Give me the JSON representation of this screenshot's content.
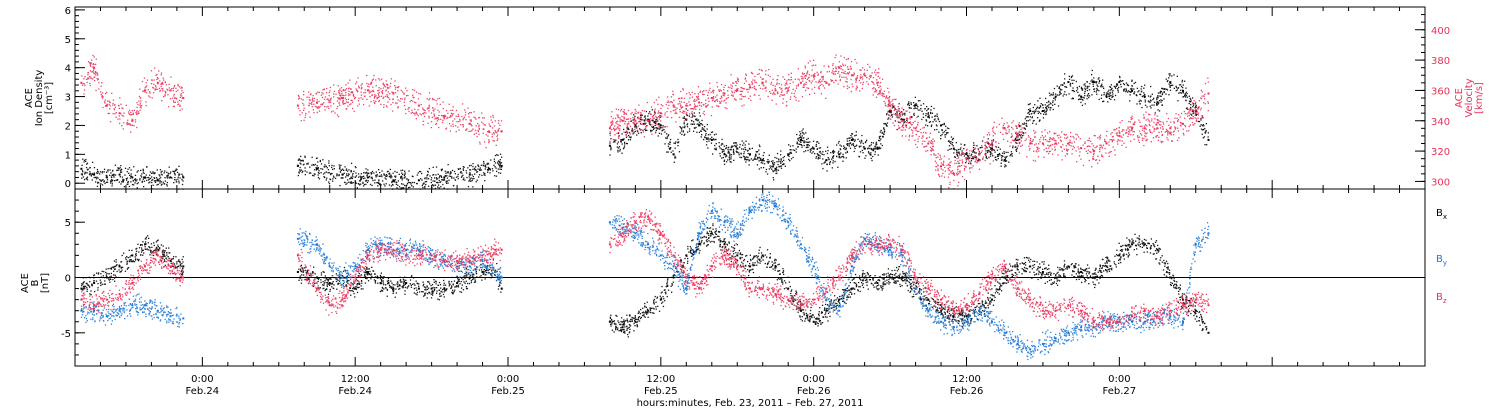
{
  "colors": {
    "black": "#000000",
    "pink": "#e8325a",
    "blue": "#1a78d6"
  },
  "chart_data": [
    {
      "type": "scatter",
      "panel": "top",
      "left_axis": {
        "label_lines": [
          "ACE",
          "Ion Density",
          "[cm⁻³]"
        ],
        "ylim": [
          -0.2,
          6.1
        ],
        "ticks": [
          0,
          1,
          2,
          3,
          4,
          5,
          6
        ]
      },
      "right_axis": {
        "label_lines": [
          "ACE",
          "Velocity",
          "[km/s]"
        ],
        "ylim": [
          295,
          415
        ],
        "ticks": [
          300,
          320,
          340,
          360,
          380,
          400
        ]
      },
      "series": [
        {
          "axis": "left",
          "color": "#000000",
          "segments": [
            {
              "x": [
                -9.5,
                -8.5,
                -7.5,
                -6.5,
                -5.5,
                -4.5,
                -3.5,
                -2.5,
                -1.5
              ],
              "y": [
                0.5,
                0.3,
                0.2,
                0.3,
                0.2,
                0.2,
                0.1,
                0.2,
                0.2
              ]
            },
            {
              "x": [
                7.5,
                9,
                11,
                13,
                15,
                17,
                19,
                21,
                22.5,
                23.5
              ],
              "y": [
                0.6,
                0.5,
                0.3,
                0.2,
                0.1,
                0.1,
                0.2,
                0.3,
                0.5,
                0.6
              ]
            },
            {
              "x": [
                32,
                33,
                34,
                35,
                36,
                37,
                38,
                39,
                40,
                41,
                42,
                43,
                44,
                45,
                46,
                47,
                48,
                49,
                50,
                51,
                52,
                53,
                54,
                55,
                56,
                57,
                58,
                59,
                60,
                61,
                62,
                63,
                64,
                65,
                66,
                67,
                68,
                69,
                70,
                71,
                72,
                73,
                74,
                75,
                76,
                77,
                78,
                79
              ],
              "y": [
                1.3,
                1.5,
                2.0,
                2.2,
                2.0,
                1.0,
                2.2,
                2.0,
                1.5,
                1.0,
                1.2,
                1.0,
                0.8,
                0.5,
                1.0,
                1.5,
                1.2,
                0.8,
                1.0,
                1.5,
                1.2,
                1.2,
                2.5,
                2.2,
                2.7,
                2.3,
                2.0,
                1.2,
                1.0,
                1.0,
                1.2,
                0.8,
                1.5,
                2.5,
                2.5,
                3.0,
                3.5,
                3.0,
                3.5,
                3.0,
                3.5,
                3.2,
                3.0,
                2.8,
                3.5,
                3.2,
                2.5,
                1.5
              ]
            }
          ]
        },
        {
          "axis": "right",
          "color": "#e8325a",
          "segments": [
            {
              "x": [
                -9.5,
                -8.5,
                -7.5,
                -6.5,
                -5.5,
                -4.5,
                -3.5,
                -2.5,
                -1.5
              ],
              "y": [
                365,
                375,
                350,
                345,
                340,
                360,
                365,
                360,
                355
              ]
            },
            {
              "x": [
                7.5,
                9,
                11,
                13,
                15,
                17,
                19,
                21,
                22.5,
                23.5
              ],
              "y": [
                350,
                352,
                355,
                360,
                358,
                350,
                343,
                338,
                333,
                333
              ]
            },
            {
              "x": [
                32,
                33,
                34,
                35,
                36,
                37,
                38,
                39,
                40,
                41,
                42,
                43,
                44,
                45,
                46,
                47,
                48,
                49,
                50,
                51,
                52,
                53,
                54,
                55,
                56,
                57,
                58,
                59,
                60,
                61,
                62,
                63,
                64,
                65,
                66,
                67,
                68,
                69,
                70,
                71,
                72,
                73,
                74,
                75,
                76,
                77,
                78,
                79
              ],
              "y": [
                335,
                340,
                340,
                340,
                345,
                350,
                350,
                352,
                355,
                358,
                360,
                362,
                365,
                360,
                360,
                365,
                370,
                365,
                375,
                370,
                370,
                365,
                350,
                340,
                335,
                325,
                310,
                305,
                315,
                318,
                325,
                335,
                330,
                325,
                325,
                325,
                325,
                322,
                320,
                325,
                330,
                335,
                335,
                335,
                335,
                338,
                345,
                358
              ]
            }
          ]
        }
      ]
    },
    {
      "type": "scatter",
      "panel": "bottom",
      "left_axis": {
        "label_lines": [
          "ACE",
          "B",
          "[nT]"
        ],
        "ylim": [
          -8,
          8
        ],
        "ticks": [
          -5,
          0,
          5
        ]
      },
      "zero_line": 0,
      "legend": [
        "B",
        "B",
        "B"
      ],
      "legend_subscripts": [
        "x",
        "y",
        "z"
      ],
      "series": [
        {
          "name": "Bx",
          "color": "#000000",
          "segments": [
            {
              "x": [
                -9.5,
                -8.5,
                -7.5,
                -6.5,
                -5.5,
                -4.5,
                -3.5,
                -2.5,
                -1.5
              ],
              "y": [
                -1,
                -0.5,
                0,
                1,
                2,
                3,
                2.5,
                1.5,
                1
              ]
            },
            {
              "x": [
                7.5,
                9,
                10,
                11,
                12,
                13,
                14,
                15,
                16,
                17,
                18,
                19,
                20,
                21,
                22,
                23,
                23.5
              ],
              "y": [
                0.5,
                0,
                -0.5,
                0,
                -1,
                0.5,
                -0.5,
                -1,
                -0.5,
                -1,
                -1,
                -1,
                -0.5,
                0,
                0.5,
                0.5,
                -1
              ]
            },
            {
              "x": [
                32,
                33,
                34,
                35,
                36,
                37,
                38,
                39,
                40,
                41,
                42,
                43,
                44,
                45,
                46,
                47,
                48,
                49,
                50,
                51,
                52,
                53,
                54,
                55,
                56,
                57,
                58,
                59,
                60,
                61,
                62,
                63,
                64,
                65,
                66,
                67,
                68,
                69,
                70,
                71,
                72,
                73,
                74,
                75,
                76,
                77,
                78,
                79
              ],
              "y": [
                -4,
                -4.5,
                -4,
                -3,
                -2,
                0,
                2,
                3,
                4,
                3,
                2,
                1,
                2,
                1,
                -1,
                -3,
                -4,
                -3,
                -2,
                -1,
                0,
                -0.5,
                0,
                0,
                -1,
                -2,
                -3,
                -3.5,
                -3.5,
                -3,
                -2,
                0,
                1,
                1,
                0.5,
                0,
                1,
                0.5,
                0,
                1,
                2,
                3,
                3,
                2.5,
                0,
                -2,
                -3,
                -5
              ]
            }
          ]
        },
        {
          "name": "By",
          "color": "#1a78d6",
          "segments": [
            {
              "x": [
                -9.5,
                -8.5,
                -7.5,
                -6.5,
                -5.5,
                -4.5,
                -3.5,
                -2.5,
                -1.5
              ],
              "y": [
                -3,
                -3,
                -3.5,
                -3,
                -2.5,
                -2.5,
                -3,
                -3.5,
                -3.7
              ]
            },
            {
              "x": [
                7.5,
                9,
                10,
                11,
                12,
                13,
                14,
                15,
                16,
                17,
                18,
                19,
                20,
                21,
                22,
                23,
                23.5
              ],
              "y": [
                3.5,
                3,
                1,
                0,
                1,
                2.5,
                3,
                2.5,
                2.5,
                2.5,
                2,
                1.5,
                1,
                1,
                1.5,
                0.5,
                0
              ]
            },
            {
              "x": [
                32,
                33,
                34,
                35,
                36,
                37,
                38,
                39,
                40,
                41,
                42,
                43,
                44,
                45,
                46,
                47,
                48,
                49,
                50,
                51,
                52,
                53,
                54,
                55,
                56,
                57,
                58,
                59,
                60,
                61,
                62,
                63,
                64,
                65,
                66,
                67,
                68,
                69,
                70,
                71,
                72,
                73,
                74,
                75,
                76,
                77,
                78,
                79
              ],
              "y": [
                5,
                4.5,
                4,
                3,
                2,
                1,
                -1,
                4,
                6,
                5,
                4,
                6,
                7,
                6.5,
                5,
                3,
                1,
                -2,
                -3,
                1,
                3.5,
                3,
                2.5,
                2,
                -1,
                -3,
                -4,
                -4.5,
                -4,
                -3,
                -4,
                -5,
                -6,
                -6.5,
                -6,
                -5.5,
                -5,
                -4.5,
                -4.5,
                -4,
                -4,
                -4,
                -4,
                -3.5,
                -3.5,
                -4,
                3,
                4
              ]
            }
          ]
        },
        {
          "name": "Bz",
          "color": "#e8325a",
          "segments": [
            {
              "x": [
                -9.5,
                -8.5,
                -7.5,
                -6.5,
                -5.5,
                -4.5,
                -3.5,
                -2.5,
                -1.5
              ],
              "y": [
                -2,
                -2.5,
                -2,
                -1.5,
                -0.5,
                1,
                2,
                1,
                0
              ]
            },
            {
              "x": [
                7.5,
                9,
                10,
                11,
                12,
                13,
                14,
                15,
                16,
                17,
                18,
                19,
                20,
                21,
                22,
                23,
                23.5
              ],
              "y": [
                2,
                -1,
                -2.5,
                -2,
                0,
                2,
                2.5,
                2.5,
                2,
                2,
                2,
                1.5,
                1.5,
                1.5,
                2,
                2.5,
                2.5
              ]
            },
            {
              "x": [
                32,
                33,
                34,
                35,
                36,
                37,
                38,
                39,
                40,
                41,
                42,
                43,
                44,
                45,
                46,
                47,
                48,
                49,
                50,
                51,
                52,
                53,
                54,
                55,
                56,
                57,
                58,
                59,
                60,
                61,
                62,
                63,
                64,
                65,
                66,
                67,
                68,
                69,
                70,
                71,
                72,
                73,
                74,
                75,
                76,
                77,
                78,
                79
              ],
              "y": [
                3,
                4,
                5,
                5.5,
                4,
                2,
                0,
                -1,
                1,
                2,
                1,
                -1,
                -1,
                -1.5,
                -2,
                -2.5,
                -2,
                -1,
                0,
                2,
                3,
                3,
                3,
                2.5,
                0,
                -1,
                -2,
                -3,
                -2.5,
                -1.5,
                0,
                1,
                -1,
                -2,
                -3,
                -3,
                -2.5,
                -3,
                -4,
                -4,
                -4,
                -3.5,
                -3,
                -3.5,
                -3,
                -2.5,
                -2,
                -2.5
              ]
            }
          ]
        }
      ]
    }
  ],
  "x_axis": {
    "title": "hours:minutes, Feb. 23, 2011 – Feb. 27, 2011",
    "xlim": [
      -10,
      96
    ],
    "ticks": [
      {
        "x": 0,
        "time": "0:00",
        "date": "Feb.24"
      },
      {
        "x": 12,
        "time": "12:00",
        "date": "Feb.24"
      },
      {
        "x": 24,
        "time": "0:00",
        "date": "Feb.25"
      },
      {
        "x": 36,
        "time": "12:00",
        "date": "Feb.25"
      },
      {
        "x": 48,
        "time": "0:00",
        "date": "Feb.26"
      },
      {
        "x": 60,
        "time": "12:00",
        "date": "Feb.26"
      },
      {
        "x": 72,
        "time": "0:00",
        "date": "Feb.27"
      }
    ]
  }
}
